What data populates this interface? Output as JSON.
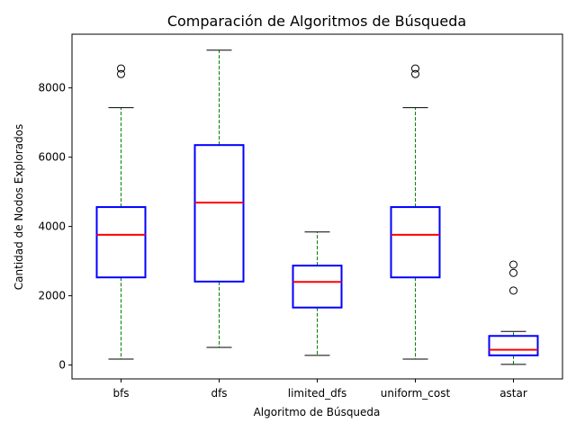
{
  "chart_data": {
    "type": "boxplot",
    "title": "Comparación de Algoritmos de Búsqueda",
    "xlabel": "Algoritmo de Búsqueda",
    "ylabel": "Cantidad de Nodos Explorados",
    "ylim": [
      -400,
      9550
    ],
    "yticks": [
      0,
      2000,
      4000,
      6000,
      8000
    ],
    "ytick_labels": [
      "0",
      "2000",
      "4000",
      "6000",
      "8000"
    ],
    "grid": false,
    "categories": [
      "bfs",
      "dfs",
      "limited_dfs",
      "uniform_cost",
      "astar"
    ],
    "boxes": [
      {
        "whisker_low": 170,
        "q1": 2530,
        "median": 3760,
        "q3": 4560,
        "whisker_high": 7430,
        "outliers": [
          8400,
          8560
        ]
      },
      {
        "whisker_low": 510,
        "q1": 2410,
        "median": 4690,
        "q3": 6350,
        "whisker_high": 9090,
        "outliers": []
      },
      {
        "whisker_low": 280,
        "q1": 1660,
        "median": 2400,
        "q3": 2870,
        "whisker_high": 3840,
        "outliers": []
      },
      {
        "whisker_low": 170,
        "q1": 2530,
        "median": 3760,
        "q3": 4560,
        "whisker_high": 7430,
        "outliers": [
          8400,
          8560
        ]
      },
      {
        "whisker_low": 20,
        "q1": 280,
        "median": 440,
        "q3": 840,
        "whisker_high": 970,
        "outliers": [
          2150,
          2660,
          2900
        ]
      }
    ],
    "colors": {
      "box": "#0000ff",
      "median": "#ff0000",
      "whisker": "#008000",
      "cap": "#000000",
      "flier": "#000000"
    }
  }
}
